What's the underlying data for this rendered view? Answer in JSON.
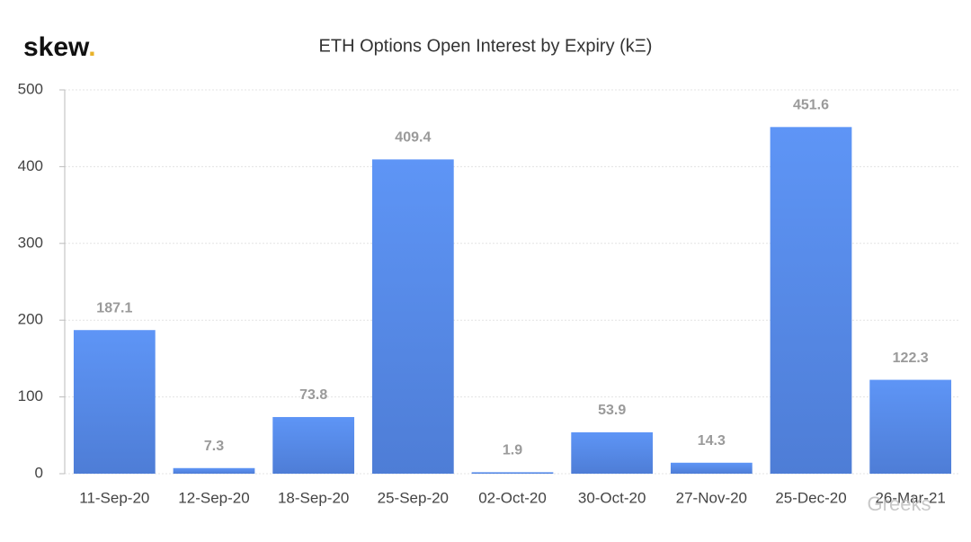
{
  "logo": {
    "text": "skew",
    "dot": "."
  },
  "watermark": "Greeks",
  "chart_data": {
    "type": "bar",
    "title": "ETH Options Open Interest by Expiry (kΞ)",
    "categories": [
      "11-Sep-20",
      "12-Sep-20",
      "18-Sep-20",
      "25-Sep-20",
      "02-Oct-20",
      "30-Oct-20",
      "27-Nov-20",
      "25-Dec-20",
      "26-Mar-21"
    ],
    "values": [
      187.1,
      7.3,
      73.8,
      409.4,
      1.9,
      53.9,
      14.3,
      451.6,
      122.3
    ],
    "color": "#5b8ff0",
    "ylim": [
      0,
      500
    ],
    "yticks": [
      0,
      100,
      200,
      300,
      400,
      500
    ],
    "grid": true
  }
}
